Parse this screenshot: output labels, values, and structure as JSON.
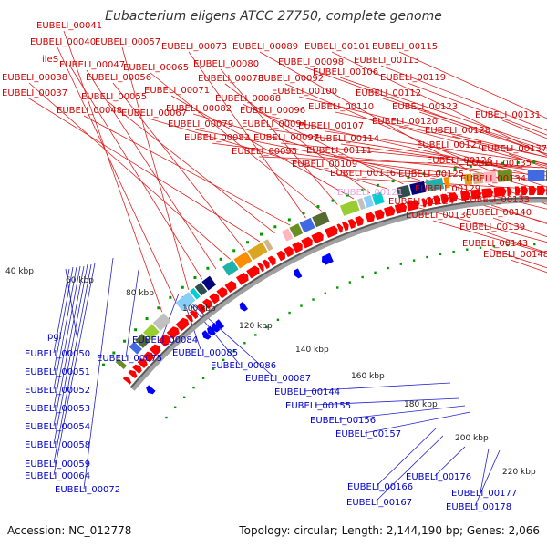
{
  "title": "Eubacterium eligens ATCC 27750, complete genome",
  "footer": {
    "accession": "Accession: NC_012778",
    "summary": "Topology: circular; Length: 2,144,190 bp; Genes: 2,066"
  },
  "colors": {
    "forward_arrow": "#ff0000",
    "reverse_arrow": "#0000ff",
    "backbone": "#888888",
    "tick_dot": "#009900",
    "red_label": "#d00000",
    "blue_label": "#0000cc",
    "pink_label": "#f0a0e0"
  },
  "tick_labels": [
    "40 kbp",
    "60 kbp",
    "80 kbp",
    "100 kbp",
    "120 kbp",
    "140 kbp",
    "160 kbp",
    "180 kbp",
    "200 kbp",
    "220 kbp"
  ],
  "forward_labels": [
    {
      "text": "EUBELI_00041"
    },
    {
      "text": "EUBELI_00040"
    },
    {
      "text": "EUBELI_00057"
    },
    {
      "text": "ileS"
    },
    {
      "text": "EUBELI_00047"
    },
    {
      "text": "EUBELI_00038"
    },
    {
      "text": "EUBELI_00056"
    },
    {
      "text": "EUBELI_00037"
    },
    {
      "text": "EUBELI_00055"
    },
    {
      "text": "EUBELI_00048"
    },
    {
      "text": "EUBELI_00073"
    },
    {
      "text": "EUBELI_00065"
    },
    {
      "text": "EUBELI_00080"
    },
    {
      "text": "EUBELI_00071"
    },
    {
      "text": "EUBELI_00078"
    },
    {
      "text": "EUBELI_00067"
    },
    {
      "text": "EUBELI_00088"
    },
    {
      "text": "EUBELI_00082"
    },
    {
      "text": "EUBELI_00079"
    },
    {
      "text": "EUBELI_00083"
    },
    {
      "text": "EUBELI_00089"
    },
    {
      "text": "EUBELI_00092"
    },
    {
      "text": "EUBELI_00096"
    },
    {
      "text": "EUBELI_00094"
    },
    {
      "text": "EUBELI_00097"
    },
    {
      "text": "EUBELI_00095"
    },
    {
      "text": "EUBELI_00101"
    },
    {
      "text": "EUBELI_00098"
    },
    {
      "text": "EUBELI_00100"
    },
    {
      "text": "EUBELI_00106"
    },
    {
      "text": "EUBELI_00107"
    },
    {
      "text": "EUBELI_00110"
    },
    {
      "text": "EUBELI_00109"
    },
    {
      "text": "EUBELI_00111"
    },
    {
      "text": "EUBELI_00114"
    },
    {
      "text": "EUBELI_00116"
    },
    {
      "text": "EUBELI_00115"
    },
    {
      "text": "EUBELI_00113"
    },
    {
      "text": "EUBELI_00119"
    },
    {
      "text": "EUBELI_00112"
    },
    {
      "text": "EUBELI_00120"
    },
    {
      "text": "EUBELI_00123"
    },
    {
      "text": "EUBELI_00128"
    },
    {
      "text": "EUBELI_00131"
    },
    {
      "text": "EUBELI_00127"
    },
    {
      "text": "EUBELI_00126"
    },
    {
      "text": "EUBELI_00125"
    },
    {
      "text": "EUBELI_00137"
    },
    {
      "text": "EUBELI_00135"
    },
    {
      "text": "EUBELI_00129"
    },
    {
      "text": "EUBELI_00134"
    },
    {
      "text": "EUBELI_00124"
    },
    {
      "text": "EUBELI_00133"
    },
    {
      "text": "EUBELI_00130"
    },
    {
      "text": "EUBELI_00140"
    },
    {
      "text": "EUBELI_00139"
    },
    {
      "text": "EUBELI_00143"
    },
    {
      "text": "EUBELI_00148"
    }
  ],
  "pink_label": "EUBELI_00121",
  "reverse_labels": [
    {
      "text": "pgi"
    },
    {
      "text": "EUBELI_00050"
    },
    {
      "text": "EUBELI_00051"
    },
    {
      "text": "EUBELI_00052"
    },
    {
      "text": "EUBELI_00053"
    },
    {
      "text": "EUBELI_00054"
    },
    {
      "text": "EUBELI_00058"
    },
    {
      "text": "EUBELI_00059"
    },
    {
      "text": "EUBELI_00064"
    },
    {
      "text": "EUBELI_00072"
    },
    {
      "text": "EUBELI_00075"
    },
    {
      "text": "EUBELI_00084"
    },
    {
      "text": "EUBELI_00085"
    },
    {
      "text": "EUBELI_00086"
    },
    {
      "text": "EUBELI_00087"
    },
    {
      "text": "EUBELI_00144"
    },
    {
      "text": "EUBELI_00155"
    },
    {
      "text": "EUBELI_00156"
    },
    {
      "text": "EUBELI_00157"
    },
    {
      "text": "EUBELI_00166"
    },
    {
      "text": "EUBELI_00167"
    },
    {
      "text": "EUBELI_00176"
    },
    {
      "text": "EUBELI_00177"
    },
    {
      "text": "EUBELI_00178"
    }
  ]
}
